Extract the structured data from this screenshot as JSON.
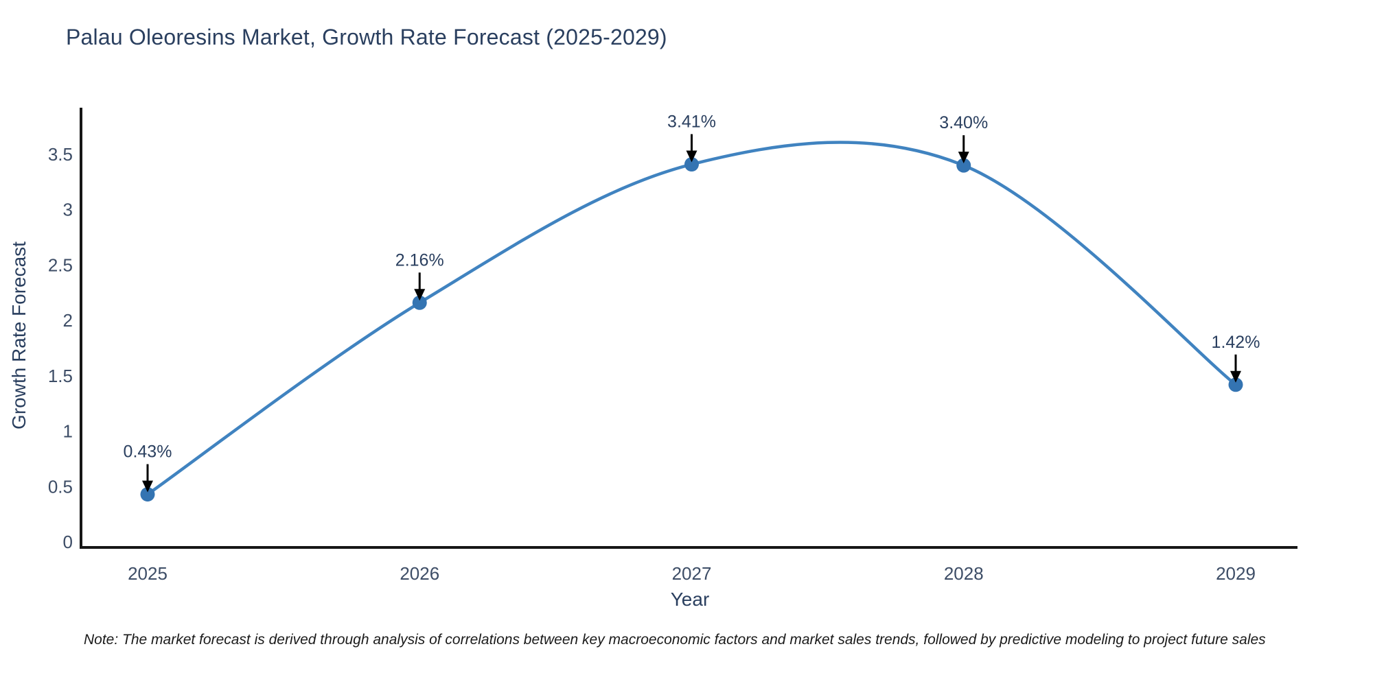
{
  "title": "Palau Oleoresins Market, Growth Rate Forecast (2025-2029)",
  "note": "Note: The market forecast is derived through analysis of correlations between key macroeconomic factors and market sales trends, followed by predictive modeling to project future sales",
  "chart_data": {
    "type": "line",
    "line_shape": "spline",
    "categories": [
      "2025",
      "2026",
      "2027",
      "2028",
      "2029"
    ],
    "x": [
      2025,
      2026,
      2027,
      2028,
      2029
    ],
    "values": [
      0.43,
      2.16,
      3.41,
      3.4,
      1.42
    ],
    "point_labels": [
      "0.43%",
      "2.16%",
      "3.41%",
      "3.40%",
      "1.42%"
    ],
    "title": "Palau Oleoresins Market, Growth Rate Forecast (2025-2029)",
    "xlabel": "Year",
    "ylabel": "Growth Rate Forecast",
    "ylim": [
      0,
      3.9
    ],
    "y_tick_labels": [
      "0",
      "0.5",
      "1",
      "1.5",
      "2",
      "2.5",
      "3",
      "3.5"
    ],
    "grid": false,
    "legend": "none",
    "annotations_have_arrows": true
  },
  "colors": {
    "line": "#4083c0",
    "marker": "#3474b2",
    "axis_line": "#161616",
    "tick_label": "#3d4d66",
    "annotation_text": "#2a3f5f",
    "annotation_arrow": "#000000",
    "title_text": "#2a3f5f",
    "background": "#ffffff"
  }
}
